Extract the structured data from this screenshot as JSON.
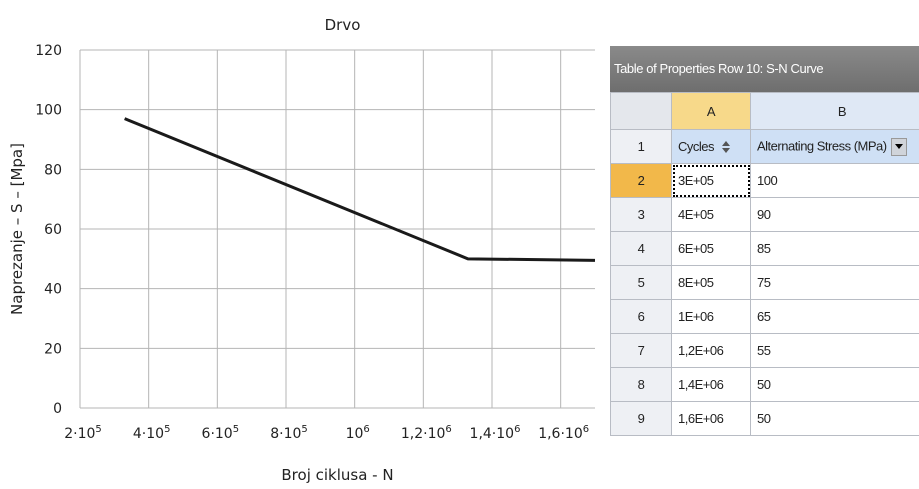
{
  "chart_data": {
    "type": "line",
    "title": "Drvo",
    "xlabel": "Broj ciklusa - N",
    "ylabel": "Naprezanje – S – [Mpa]",
    "xlim": [
      200000,
      1700000
    ],
    "ylim": [
      0,
      120
    ],
    "yticks": [
      0,
      20,
      40,
      60,
      80,
      100,
      120
    ],
    "xticks": [
      {
        "value": 200000,
        "base": "2·10",
        "exp": "5"
      },
      {
        "value": 400000,
        "base": "4·10",
        "exp": "5"
      },
      {
        "value": 600000,
        "base": "6·10",
        "exp": "5"
      },
      {
        "value": 800000,
        "base": "8·10",
        "exp": "5"
      },
      {
        "value": 1000000,
        "base": "10",
        "exp": "6"
      },
      {
        "value": 1200000,
        "base": "1,2·10",
        "exp": "6"
      },
      {
        "value": 1400000,
        "base": "1,4·10",
        "exp": "6"
      },
      {
        "value": 1600000,
        "base": "1,6·10",
        "exp": "6"
      }
    ],
    "grid": true,
    "series": [
      {
        "x": [
          330000,
          1330000,
          1700000
        ],
        "y": [
          97,
          50,
          49.5
        ]
      }
    ]
  },
  "panel": {
    "title": "Table of Properties Row 10: S-N Curve",
    "col_letters": [
      "A",
      "B"
    ],
    "headers": [
      "Cycles",
      "Alternating Stress (MPa)"
    ],
    "header_row_number": "1",
    "rows": [
      {
        "n": "2",
        "cycles": "3E+05",
        "stress": "100"
      },
      {
        "n": "3",
        "cycles": "4E+05",
        "stress": "90"
      },
      {
        "n": "4",
        "cycles": "6E+05",
        "stress": "85"
      },
      {
        "n": "5",
        "cycles": "8E+05",
        "stress": "75"
      },
      {
        "n": "6",
        "cycles": "1E+06",
        "stress": "65"
      },
      {
        "n": "7",
        "cycles": "1,2E+06",
        "stress": "55"
      },
      {
        "n": "8",
        "cycles": "1,4E+06",
        "stress": "50"
      },
      {
        "n": "9",
        "cycles": "1,6E+06",
        "stress": "50"
      }
    ]
  }
}
